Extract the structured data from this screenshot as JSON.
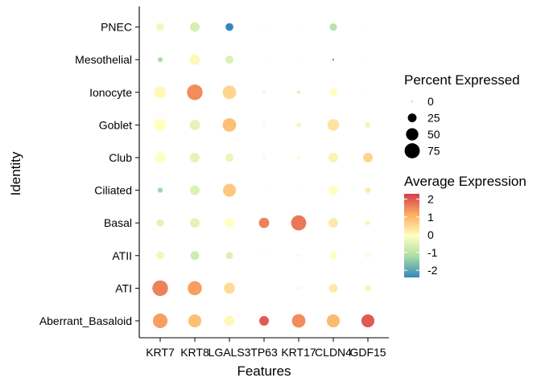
{
  "chart_data": {
    "type": "scatter",
    "xlabel": "Features",
    "ylabel": "Identity",
    "features": [
      "KRT7",
      "KRT8",
      "LGALS3",
      "TP63",
      "KRT17",
      "CLDN4",
      "GDF15"
    ],
    "identities": [
      "Aberrant_Basaloid",
      "ATI",
      "ATII",
      "Basal",
      "Ciliated",
      "Club",
      "Goblet",
      "Ionocyte",
      "Mesothelial",
      "PNEC"
    ],
    "points": [
      {
        "identity": "PNEC",
        "values": [
          [
            20,
            -0.2
          ],
          [
            30,
            -0.6
          ],
          [
            20,
            -2.4
          ],
          [
            0,
            0
          ],
          [
            0,
            0
          ],
          [
            18,
            -1.0
          ],
          [
            0,
            0
          ]
        ]
      },
      {
        "identity": "Mesothelial",
        "values": [
          [
            8,
            -1.2
          ],
          [
            35,
            0.1
          ],
          [
            22,
            -0.5
          ],
          [
            0,
            0
          ],
          [
            0,
            0
          ],
          [
            1,
            -2.3
          ],
          [
            0,
            0
          ]
        ]
      },
      {
        "identity": "Ionocyte",
        "values": [
          [
            45,
            0.1
          ],
          [
            80,
            1.5
          ],
          [
            60,
            0.6
          ],
          [
            2,
            0.2
          ],
          [
            3,
            0.4
          ],
          [
            22,
            0.0
          ],
          [
            0,
            0
          ]
        ]
      },
      {
        "identity": "Goblet",
        "values": [
          [
            50,
            0.0
          ],
          [
            35,
            -0.4
          ],
          [
            60,
            0.9
          ],
          [
            2,
            0.1
          ],
          [
            6,
            0.2
          ],
          [
            45,
            0.4
          ],
          [
            10,
            0.2
          ]
        ]
      },
      {
        "identity": "Club",
        "values": [
          [
            35,
            0.0
          ],
          [
            30,
            -0.4
          ],
          [
            22,
            -0.3
          ],
          [
            2,
            0.1
          ],
          [
            3,
            -0.1
          ],
          [
            30,
            0.2
          ],
          [
            30,
            0.6
          ]
        ]
      },
      {
        "identity": "Ciliated",
        "values": [
          [
            8,
            -1.3
          ],
          [
            30,
            -0.5
          ],
          [
            55,
            0.8
          ],
          [
            0,
            0
          ],
          [
            1,
            0.1
          ],
          [
            30,
            0.0
          ],
          [
            10,
            0.3
          ]
        ]
      },
      {
        "identity": "Basal",
        "values": [
          [
            18,
            -0.4
          ],
          [
            30,
            -0.4
          ],
          [
            30,
            0.0
          ],
          [
            35,
            1.6
          ],
          [
            75,
            1.7
          ],
          [
            30,
            0.3
          ],
          [
            6,
            0.2
          ]
        ]
      },
      {
        "identity": "ATII",
        "values": [
          [
            22,
            -0.2
          ],
          [
            25,
            -0.7
          ],
          [
            16,
            -0.5
          ],
          [
            1,
            0.1
          ],
          [
            2,
            0.1
          ],
          [
            18,
            0.0
          ],
          [
            6,
            0.0
          ]
        ]
      },
      {
        "identity": "ATI",
        "values": [
          [
            80,
            1.6
          ],
          [
            65,
            1.3
          ],
          [
            40,
            0.5
          ],
          [
            0,
            0
          ],
          [
            3,
            -0.1
          ],
          [
            25,
            0.3
          ],
          [
            10,
            0.2
          ]
        ]
      },
      {
        "identity": "Aberrant_Basaloid",
        "values": [
          [
            70,
            1.3
          ],
          [
            55,
            0.9
          ],
          [
            35,
            0.1
          ],
          [
            30,
            2.0
          ],
          [
            60,
            1.5
          ],
          [
            55,
            1.0
          ],
          [
            55,
            2.0
          ]
        ]
      }
    ],
    "legend_size": {
      "title": "Percent Expressed",
      "levels": [
        0,
        25,
        50,
        75
      ],
      "labels": [
        "0",
        "25",
        "50",
        "75"
      ]
    },
    "legend_color": {
      "title": "Average Expression",
      "ticks": [
        2,
        1,
        0,
        -1,
        -2
      ],
      "labels": [
        "2",
        "1",
        "0",
        "-1",
        "-2"
      ],
      "range": [
        -2.4,
        2.3
      ]
    },
    "colors": {
      "low": "#3288bd",
      "midlow": "#abdda4",
      "mid": "#ffffbf",
      "midhigh": "#fdae61",
      "high": "#d53e4f"
    },
    "legend_placement": "right",
    "grid": false
  }
}
